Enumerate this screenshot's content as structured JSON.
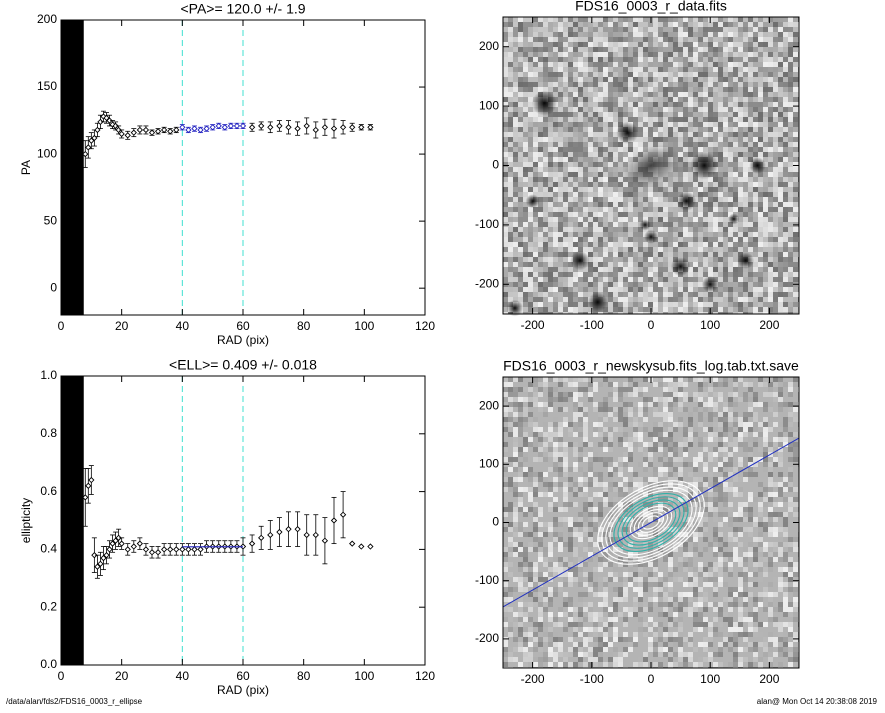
{
  "chart_data": [
    {
      "type": "scatter",
      "title": "<PA>= 120.0 +/-   1.9",
      "x_label": "RAD (pix)",
      "y_label": "PA",
      "xlim": [
        0,
        120
      ],
      "ylim": [
        -20,
        200
      ],
      "xticks": [
        0,
        20,
        40,
        60,
        80,
        100,
        120
      ],
      "yticks": [
        0,
        50,
        100,
        150,
        200
      ],
      "vlines": [
        40,
        60
      ],
      "vline_color": "#40e0d0",
      "shaded_xlim": [
        0,
        7.5
      ],
      "color": "#000000",
      "highlight_color": "#2020c0",
      "x": [
        8,
        9,
        10,
        11,
        12,
        13,
        14,
        15,
        16,
        17,
        18,
        19,
        20,
        22,
        24,
        26,
        28,
        30,
        32,
        34,
        36,
        38,
        40,
        42,
        44,
        46,
        48,
        50,
        52,
        54,
        56,
        58,
        60,
        63,
        66,
        69,
        72,
        75,
        78,
        81,
        84,
        87,
        90,
        93,
        96,
        99,
        102
      ],
      "values": [
        100,
        105,
        110,
        112,
        118,
        124,
        128,
        127,
        125,
        122,
        121,
        118,
        115,
        114,
        116,
        118,
        118,
        116,
        117,
        118,
        117,
        118,
        120,
        118,
        119,
        118,
        119,
        120,
        121,
        120,
        121,
        121,
        121,
        120,
        121,
        120,
        121,
        120,
        119,
        121,
        118,
        120,
        119,
        120,
        120,
        120,
        120
      ],
      "errors": [
        10,
        8,
        6,
        6,
        5,
        5,
        4,
        4,
        4,
        3,
        3,
        3,
        3,
        3,
        3,
        3,
        3,
        2,
        2,
        2,
        2,
        2,
        2,
        2,
        2,
        2,
        2,
        2,
        2,
        2,
        2,
        2,
        2,
        3,
        3,
        4,
        4,
        5,
        5,
        6,
        6,
        6,
        7,
        5,
        3,
        2,
        2
      ]
    },
    {
      "type": "scatter",
      "title": "<ELL>= 0.409 +/-  0.018",
      "x_label": "RAD (pix)",
      "y_label": "ellipticity",
      "xlim": [
        0,
        120
      ],
      "ylim": [
        0,
        1
      ],
      "xticks": [
        0,
        20,
        40,
        60,
        80,
        100,
        120
      ],
      "yticks": [
        {
          "value": 0,
          "label": "0.0"
        },
        0.2,
        0.4,
        0.6,
        0.8,
        {
          "value": 1,
          "label": "1.0"
        }
      ],
      "vlines": [
        40,
        60
      ],
      "vline_color": "#40e0d0",
      "shaded_xlim": [
        0,
        7.5
      ],
      "color": "#000000",
      "highlight_color": "#000000",
      "fit_line": {
        "x": [
          40,
          60
        ],
        "y": 0.409,
        "color": "#2020c0"
      },
      "x": [
        8,
        9,
        10,
        11,
        12,
        13,
        14,
        15,
        16,
        17,
        18,
        19,
        20,
        22,
        24,
        26,
        28,
        30,
        32,
        34,
        36,
        38,
        40,
        42,
        44,
        46,
        48,
        50,
        52,
        54,
        56,
        58,
        60,
        63,
        66,
        69,
        72,
        75,
        78,
        81,
        84,
        87,
        90,
        93,
        96,
        99,
        102
      ],
      "values": [
        0.58,
        0.62,
        0.64,
        0.38,
        0.34,
        0.35,
        0.37,
        0.38,
        0.4,
        0.42,
        0.43,
        0.44,
        0.42,
        0.4,
        0.41,
        0.42,
        0.4,
        0.39,
        0.39,
        0.4,
        0.4,
        0.4,
        0.4,
        0.4,
        0.4,
        0.4,
        0.41,
        0.41,
        0.41,
        0.41,
        0.41,
        0.41,
        0.41,
        0.42,
        0.44,
        0.45,
        0.46,
        0.47,
        0.47,
        0.45,
        0.45,
        0.43,
        0.5,
        0.52,
        0.42,
        0.41,
        0.41
      ],
      "errors": [
        0.1,
        0.06,
        0.05,
        0.06,
        0.04,
        0.04,
        0.04,
        0.03,
        0.03,
        0.03,
        0.03,
        0.03,
        0.02,
        0.02,
        0.02,
        0.02,
        0.02,
        0.02,
        0.02,
        0.02,
        0.02,
        0.02,
        0.02,
        0.02,
        0.02,
        0.02,
        0.02,
        0.02,
        0.02,
        0.02,
        0.02,
        0.02,
        0.03,
        0.03,
        0.04,
        0.05,
        0.05,
        0.06,
        0.06,
        0.07,
        0.07,
        0.08,
        0.08,
        0.08,
        0,
        0,
        0
      ]
    },
    {
      "type": "image",
      "title": "FDS16_0003_r_data.fits",
      "xlim": [
        -250,
        250
      ],
      "ylim": [
        -250,
        250
      ],
      "xticks": [
        -200,
        -100,
        0,
        100,
        200
      ],
      "yticks": [
        -200,
        -100,
        0,
        100,
        200
      ]
    },
    {
      "type": "image",
      "title": "FDS16_0003_r_newskysub.fits_log.tab.txt.save",
      "xlim": [
        -250,
        250
      ],
      "ylim": [
        -250,
        250
      ],
      "xticks": [
        -200,
        -100,
        0,
        100,
        200
      ],
      "yticks": [
        -200,
        -100,
        0,
        100,
        200
      ],
      "contours": true
    }
  ],
  "footer": {
    "left": "/data/alan/fds2/FDS16_0003_r_ellipse",
    "right": "alan@  Mon Oct 14 20:38:08 2019"
  }
}
